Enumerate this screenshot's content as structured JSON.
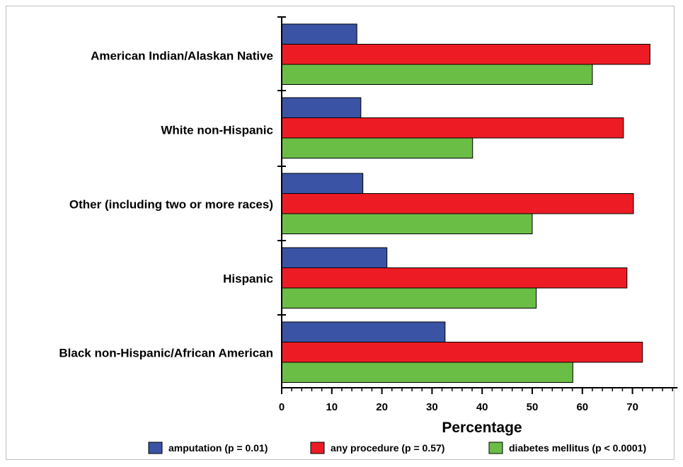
{
  "chart_data": {
    "type": "bar",
    "orientation": "horizontal",
    "categories": [
      "American Indian/Alaskan Native",
      "White non-Hispanic",
      "Other (including two or more races)",
      "Hispanic",
      "Black non-Hispanic/African American"
    ],
    "series": [
      {
        "name": "amputation (p = 0.01)",
        "color": "#3a53a4",
        "values": [
          15.0,
          15.8,
          16.2,
          21.0,
          32.6
        ]
      },
      {
        "name": "any procedure (p = 0.57)",
        "color": "#ed1c24",
        "values": [
          73.5,
          68.2,
          70.2,
          68.9,
          72.0
        ]
      },
      {
        "name": "diabetes mellitus (p < 0.0001)",
        "color": "#6abd45",
        "values": [
          62.0,
          38.1,
          50.0,
          50.8,
          58.1
        ]
      }
    ],
    "xlabel": "Percentage",
    "xlim": [
      0,
      79
    ],
    "xticks": [
      "0",
      "10",
      "20",
      "30",
      "40",
      "50",
      "60",
      "70"
    ],
    "grid": false,
    "legend_position": "bottom"
  }
}
